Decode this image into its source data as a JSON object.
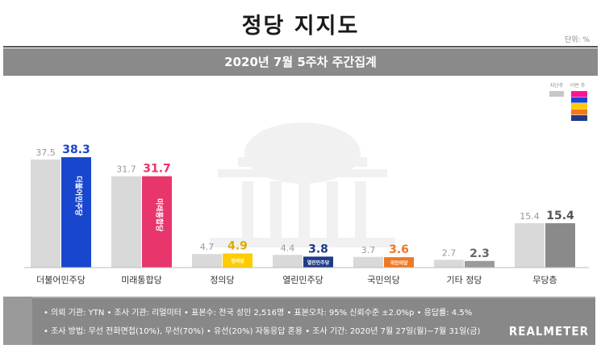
{
  "header": {
    "title": "정당 지지도",
    "unit": "단위: %",
    "subtitle": "2020년 7월 5주차 주간집계"
  },
  "legend": {
    "prev_label": "지난주",
    "curr_label": "이번 주",
    "curr_swatches": [
      "#ff1493",
      "#1846cc",
      "#ffcc00",
      "#f07820",
      "#1e3a8a"
    ]
  },
  "chart_data": {
    "type": "bar",
    "categories": [
      "더불어민주당",
      "미래통합당",
      "정의당",
      "열린민주당",
      "국민의당",
      "기타 정당",
      "무당층"
    ],
    "series": [
      {
        "name": "지난주",
        "values": [
          37.5,
          31.7,
          4.7,
          4.4,
          3.7,
          2.7,
          15.4
        ]
      },
      {
        "name": "이번 주",
        "values": [
          38.3,
          31.7,
          4.9,
          3.8,
          3.6,
          2.3,
          15.4
        ]
      }
    ],
    "prev_color": "#d9d9d9",
    "curr_colors": [
      "#1846cc",
      "#e8356b",
      "#ffcc00",
      "#1e3a8a",
      "#f07820",
      "#9a9a9a",
      "#8a8a8a"
    ],
    "value_colors": [
      "#1846cc",
      "#e8356b",
      "#e0a800",
      "#1e3a8a",
      "#f07820",
      "#666666",
      "#555555"
    ],
    "bar_logos": [
      "더불어민주당",
      "미래통합당",
      "정의당",
      "열린민주당",
      "국민의당",
      "",
      ""
    ],
    "ylim": [
      0,
      40
    ]
  },
  "footer": {
    "line1": "• 의뢰 기관: YTN • 조사 기관: 리얼미터 • 표본수: 전국 성인 2,516명 • 표본오차: 95% 신뢰수준 ±2.0%p • 응답률: 4.5%",
    "line2": "• 조사 방법: 무선 전화면접(10%), 무선(70%) • 유선(20%) 자동응답 혼용 • 조사 기간: 2020년 7월 27일(월)~7월 31일(금)",
    "brand": "REALMETER"
  }
}
